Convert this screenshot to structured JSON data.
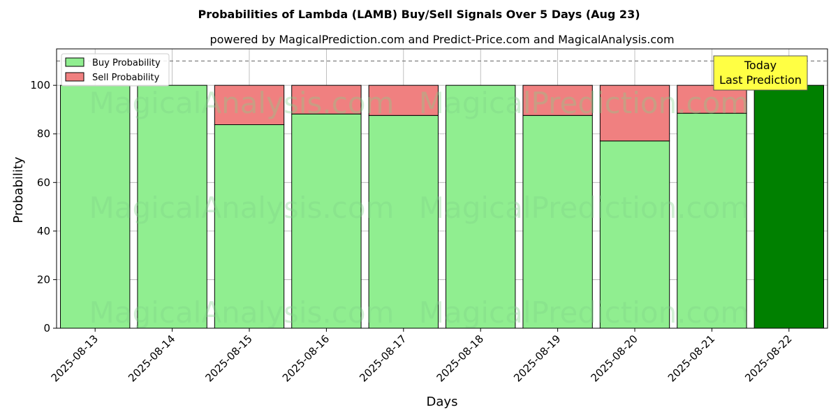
{
  "chart_data": {
    "type": "bar",
    "stacked": true,
    "title": "Probabilities of Lambda (LAMB) Buy/Sell Signals Over 5 Days (Aug 23)",
    "subtitle": "powered by MagicalPrediction.com and Predict-Price.com and MagicalAnalysis.com",
    "xlabel": "Days",
    "ylabel": "Probability",
    "ylim": [
      0,
      115
    ],
    "yticks": [
      0,
      20,
      40,
      60,
      80,
      100
    ],
    "grid": true,
    "legend_placement": "top-left",
    "reference_line": 110,
    "categories": [
      "2025-08-13",
      "2025-08-14",
      "2025-08-15",
      "2025-08-16",
      "2025-08-17",
      "2025-08-18",
      "2025-08-19",
      "2025-08-20",
      "2025-08-21",
      "2025-08-22"
    ],
    "series": [
      {
        "name": "Buy Probability",
        "color": "#90ee90",
        "values": [
          100,
          100,
          83.8,
          88.2,
          87.6,
          100,
          87.6,
          77.1,
          88.5,
          100
        ]
      },
      {
        "name": "Sell Probability",
        "color": "#f08080",
        "values": [
          0,
          0,
          16.2,
          11.8,
          12.4,
          0,
          12.4,
          22.9,
          11.5,
          0
        ]
      }
    ],
    "highlight": {
      "index": 9,
      "color": "#008000"
    },
    "annotation": {
      "lines": [
        "Today",
        "Last Prediction"
      ],
      "color": "#ffff44"
    },
    "watermarks": [
      "MagicalAnalysis.com",
      "MagicalPrediction.com"
    ]
  }
}
